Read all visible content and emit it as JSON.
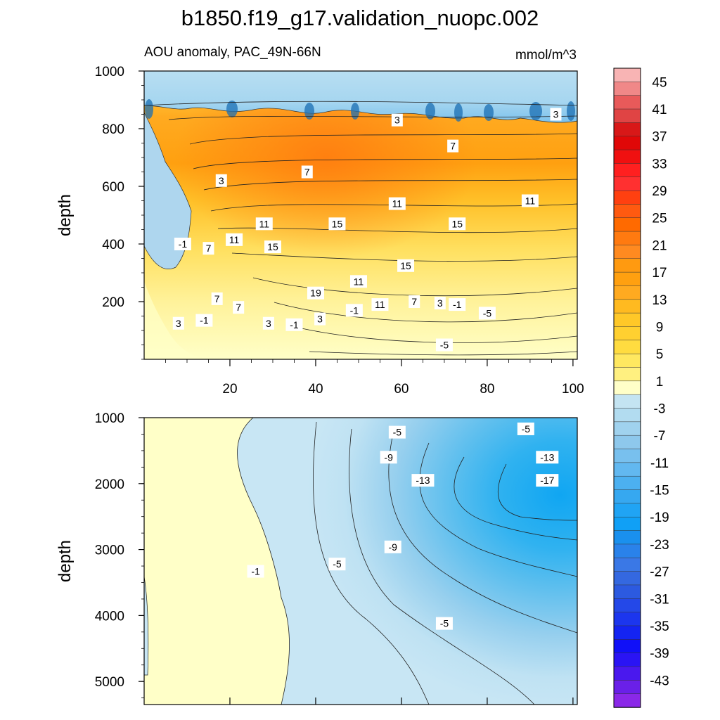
{
  "chart_data": {
    "type": "contour",
    "title": "b1850.f19_g17.validation_nuopc.002",
    "subtitle_left": "AOU anomaly, PAC_49N-66N",
    "subtitle_right": "mmol/m^3",
    "ylabel": "depth",
    "upper_panel": {
      "ylim": [
        1000,
        0
      ],
      "xlim": [
        0,
        101
      ],
      "yticks": [
        200,
        400,
        600,
        800,
        1000
      ],
      "xticks": [
        20,
        40,
        60,
        80,
        100
      ],
      "contour_labels": [
        {
          "text": "3",
          "x": 8,
          "y": 125
        },
        {
          "text": "-1",
          "x": 14,
          "y": 135
        },
        {
          "text": "3",
          "x": 29,
          "y": 125
        },
        {
          "text": "-1",
          "x": 35,
          "y": 120
        },
        {
          "text": "3",
          "x": 41,
          "y": 140
        },
        {
          "text": "-1",
          "x": 49,
          "y": 170
        },
        {
          "text": "-5",
          "x": 70,
          "y": 50
        },
        {
          "text": "-5",
          "x": 80,
          "y": 160
        },
        {
          "text": "7",
          "x": 17,
          "y": 210
        },
        {
          "text": "7",
          "x": 22,
          "y": 180
        },
        {
          "text": "19",
          "x": 40,
          "y": 230
        },
        {
          "text": "11",
          "x": 55,
          "y": 190
        },
        {
          "text": "7",
          "x": 63,
          "y": 200
        },
        {
          "text": "3",
          "x": 69,
          "y": 195
        },
        {
          "text": "-1",
          "x": 73,
          "y": 190
        },
        {
          "text": "11",
          "x": 50,
          "y": 270
        },
        {
          "text": "15",
          "x": 61,
          "y": 325
        },
        {
          "text": "-1",
          "x": 9,
          "y": 400
        },
        {
          "text": "7",
          "x": 15,
          "y": 385
        },
        {
          "text": "11",
          "x": 21,
          "y": 415
        },
        {
          "text": "15",
          "x": 30,
          "y": 390
        },
        {
          "text": "11",
          "x": 28,
          "y": 470
        },
        {
          "text": "15",
          "x": 45,
          "y": 470
        },
        {
          "text": "15",
          "x": 73,
          "y": 470
        },
        {
          "text": "11",
          "x": 59,
          "y": 540
        },
        {
          "text": "11",
          "x": 90,
          "y": 550
        },
        {
          "text": "3",
          "x": 18,
          "y": 620
        },
        {
          "text": "7",
          "x": 38,
          "y": 650
        },
        {
          "text": "7",
          "x": 72,
          "y": 740
        },
        {
          "text": "3",
          "x": 59,
          "y": 830
        },
        {
          "text": "3",
          "x": 96,
          "y": 850
        }
      ]
    },
    "lower_panel": {
      "ylim": [
        1000,
        5350
      ],
      "xlim": [
        0,
        101
      ],
      "yticks": [
        1000,
        2000,
        3000,
        4000,
        5000
      ],
      "contour_labels": [
        {
          "text": "-5",
          "x": 59,
          "y": 1220
        },
        {
          "text": "-5",
          "x": 89,
          "y": 1170
        },
        {
          "text": "-9",
          "x": 57,
          "y": 1600
        },
        {
          "text": "-13",
          "x": 94,
          "y": 1600
        },
        {
          "text": "-13",
          "x": 65,
          "y": 1950
        },
        {
          "text": "-17",
          "x": 94,
          "y": 1950
        },
        {
          "text": "-9",
          "x": 58,
          "y": 2960
        },
        {
          "text": "-5",
          "x": 45,
          "y": 3220
        },
        {
          "text": "-1",
          "x": 26,
          "y": 3330
        },
        {
          "text": "-5",
          "x": 70,
          "y": 4120
        }
      ]
    },
    "colorbar": {
      "labels": [
        "45",
        "41",
        "37",
        "33",
        "29",
        "25",
        "21",
        "17",
        "13",
        "9",
        "5",
        "1",
        "-3",
        "-7",
        "-11",
        "-15",
        "-19",
        "-23",
        "-27",
        "-31",
        "-35",
        "-39",
        "-43"
      ],
      "colors": [
        "#f8b4b4",
        "#f08888",
        "#e85a5a",
        "#e04444",
        "#d81818",
        "#e00808",
        "#f01010",
        "#ff2020",
        "#ff3030",
        "#ff4010",
        "#ff5a10",
        "#ff6a00",
        "#ff7a10",
        "#ff8a20",
        "#ff9a10",
        "#ffa010",
        "#ffaa20",
        "#ffba20",
        "#ffc828",
        "#ffd030",
        "#ffdc40",
        "#ffe860",
        "#fff080",
        "#ffffc8",
        "#c4e4f2",
        "#b2dcf0",
        "#a0d2ee",
        "#8ec8ec",
        "#78c0ee",
        "#62b8f0",
        "#4cb0f0",
        "#36a8f0",
        "#20a4f4",
        "#10a0f6",
        "#1a90ee",
        "#2a82ea",
        "#3a78e6",
        "#3468e0",
        "#2c5ae0",
        "#2448e8",
        "#1c36ee",
        "#1424f2",
        "#1010f8",
        "#2a14f4",
        "#4a18ee",
        "#6a20e8",
        "#8a28e8"
      ]
    }
  }
}
